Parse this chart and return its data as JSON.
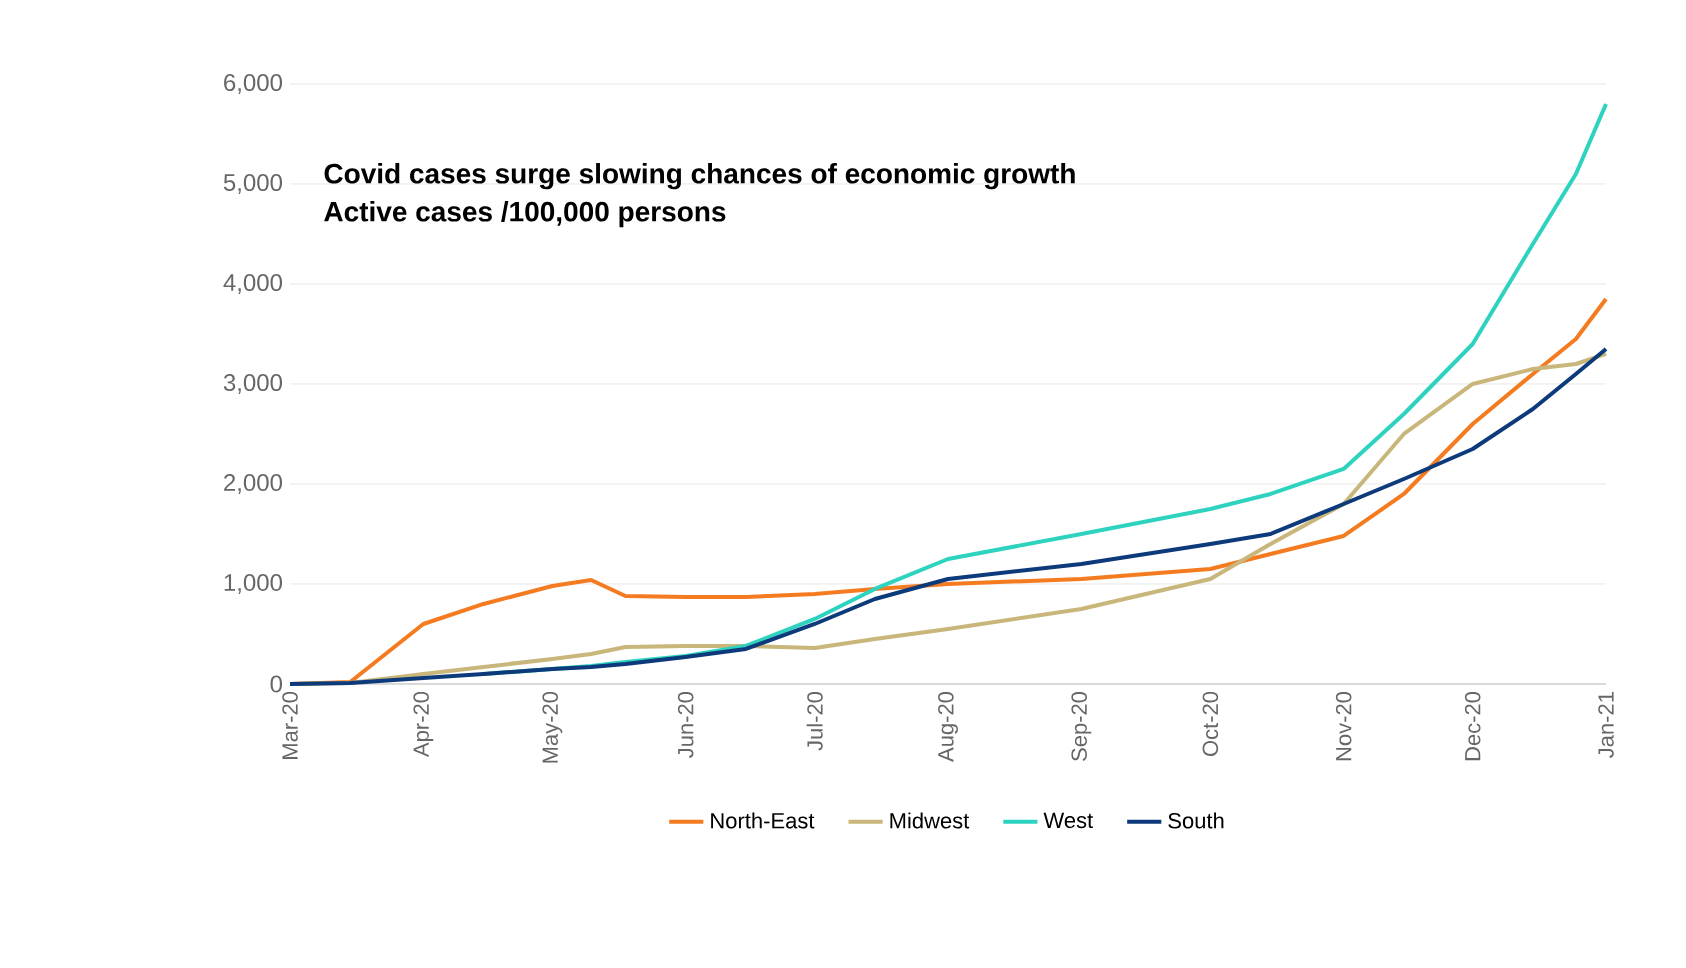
{
  "chart_data": {
    "type": "line",
    "title": "Covid cases surge slowing chances of economic growth",
    "subtitle": "Active cases /100,000 persons",
    "x": [
      "2020-03-01",
      "2020-03-15",
      "2020-04-01",
      "2020-04-15",
      "2020-05-01",
      "2020-05-10",
      "2020-05-18",
      "2020-06-01",
      "2020-06-15",
      "2020-07-01",
      "2020-07-15",
      "2020-08-01",
      "2020-09-01",
      "2020-10-01",
      "2020-10-15",
      "2020-11-01",
      "2020-11-15",
      "2020-12-01",
      "2020-12-15",
      "2020-12-25",
      "2021-01-01"
    ],
    "series": [
      {
        "name": "North-East",
        "color": "#f47b20",
        "values": [
          0,
          20,
          600,
          800,
          980,
          1040,
          880,
          870,
          870,
          900,
          950,
          1000,
          1050,
          1150,
          1300,
          1480,
          1900,
          2600,
          3100,
          3450,
          3850
        ]
      },
      {
        "name": "Midwest",
        "color": "#c8b67a",
        "values": [
          0,
          10,
          100,
          170,
          250,
          300,
          370,
          380,
          380,
          360,
          450,
          550,
          750,
          1050,
          1400,
          1800,
          2500,
          3000,
          3150,
          3200,
          3300
        ]
      },
      {
        "name": "West",
        "color": "#2ed3c0",
        "values": [
          null,
          null,
          null,
          100,
          150,
          180,
          220,
          280,
          380,
          650,
          950,
          1250,
          1500,
          1750,
          1900,
          2150,
          2700,
          3400,
          4400,
          5100,
          5800
        ]
      },
      {
        "name": "South",
        "color": "#0d3a7a",
        "values": [
          0,
          10,
          60,
          100,
          150,
          170,
          200,
          270,
          350,
          600,
          850,
          1050,
          1200,
          1400,
          1500,
          1800,
          2050,
          2350,
          2750,
          3100,
          3350
        ]
      }
    ],
    "xlim": [
      "2020-03-01",
      "2021-01-01"
    ],
    "xticks": [
      {
        "value": "2020-03-01",
        "label": "Mar-20"
      },
      {
        "value": "2020-04-01",
        "label": "Apr-20"
      },
      {
        "value": "2020-05-01",
        "label": "May-20"
      },
      {
        "value": "2020-06-01",
        "label": "Jun-20"
      },
      {
        "value": "2020-07-01",
        "label": "Jul-20"
      },
      {
        "value": "2020-08-01",
        "label": "Aug-20"
      },
      {
        "value": "2020-09-01",
        "label": "Sep-20"
      },
      {
        "value": "2020-10-01",
        "label": "Oct-20"
      },
      {
        "value": "2020-11-01",
        "label": "Nov-20"
      },
      {
        "value": "2020-12-01",
        "label": "Dec-20"
      },
      {
        "value": "2021-01-01",
        "label": "Jan-21"
      }
    ],
    "ylim": [
      0,
      6000
    ],
    "yticks": [
      {
        "value": 0,
        "label": "0"
      },
      {
        "value": 1000,
        "label": "1,000"
      },
      {
        "value": 2000,
        "label": "2,000"
      },
      {
        "value": 3000,
        "label": "3,000"
      },
      {
        "value": 4000,
        "label": "4,000"
      },
      {
        "value": 5000,
        "label": "5,000"
      },
      {
        "value": 6000,
        "label": "6,000"
      }
    ],
    "grid": "y",
    "legend": "bottom",
    "marker": "none",
    "line_style": "solid"
  }
}
